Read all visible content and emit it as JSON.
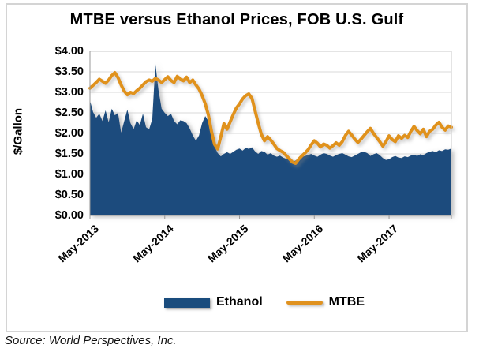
{
  "title": "MTBE versus Ethanol Prices, FOB U.S. Gulf",
  "source": "Source: World Perspectives, Inc.",
  "colors": {
    "ethanol": "#1A4C7D",
    "mtbe": "#E0921F",
    "gridline": "#D9D9D9",
    "axis": "#999999",
    "plot_border": "#C9C9C9",
    "frame_border": "#D4D4D4"
  },
  "chart_data": {
    "type": "area+line",
    "title": "MTBE versus Ethanol Prices, FOB U.S. Gulf",
    "xlabel": "",
    "ylabel": "$/Gallon",
    "ylim": [
      0,
      4
    ],
    "grid": true,
    "legend_position": "bottom",
    "y_ticks": [
      "$4.00",
      "$3.50",
      "$3.00",
      "$2.50",
      "$2.00",
      "$1.50",
      "$1.00",
      "$0.50",
      "$0.00"
    ],
    "x_ticks": {
      "labels": [
        "May-2013",
        "May-2014",
        "May-2015",
        "May-2016",
        "May-2017"
      ],
      "fractions": [
        0,
        0.2069,
        0.4138,
        0.6207,
        0.8276
      ]
    },
    "x_start": "May-2013",
    "x_end": "Mar-2018",
    "sampling": "semi-monthly (estimated from plot)",
    "series": [
      {
        "name": "Ethanol",
        "type": "area",
        "color": "#1A4C7D",
        "values": [
          2.8,
          2.52,
          2.38,
          2.48,
          2.3,
          2.56,
          2.27,
          2.6,
          2.44,
          2.5,
          2.02,
          2.3,
          2.58,
          2.25,
          2.1,
          2.32,
          2.2,
          2.48,
          2.15,
          2.1,
          2.35,
          3.7,
          3.05,
          2.6,
          2.5,
          2.42,
          2.48,
          2.3,
          2.22,
          2.32,
          2.3,
          2.25,
          2.12,
          1.95,
          1.82,
          1.95,
          2.25,
          2.42,
          2.3,
          1.95,
          1.68,
          1.52,
          1.44,
          1.5,
          1.54,
          1.5,
          1.55,
          1.6,
          1.63,
          1.58,
          1.65,
          1.62,
          1.66,
          1.56,
          1.5,
          1.57,
          1.55,
          1.48,
          1.52,
          1.46,
          1.43,
          1.46,
          1.41,
          1.38,
          1.36,
          1.31,
          1.34,
          1.39,
          1.42,
          1.45,
          1.47,
          1.5,
          1.46,
          1.43,
          1.48,
          1.52,
          1.5,
          1.46,
          1.43,
          1.47,
          1.5,
          1.52,
          1.48,
          1.44,
          1.42,
          1.46,
          1.5,
          1.54,
          1.55,
          1.52,
          1.45,
          1.49,
          1.52,
          1.47,
          1.4,
          1.35,
          1.37,
          1.42,
          1.45,
          1.41,
          1.4,
          1.44,
          1.42,
          1.46,
          1.48,
          1.45,
          1.49,
          1.47,
          1.52,
          1.55,
          1.57,
          1.54,
          1.59,
          1.57,
          1.61,
          1.6,
          1.63
        ]
      },
      {
        "name": "MTBE",
        "type": "line",
        "color": "#E0921F",
        "values": [
          3.1,
          3.17,
          3.24,
          3.32,
          3.27,
          3.22,
          3.3,
          3.41,
          3.48,
          3.36,
          3.18,
          3.03,
          2.94,
          3.0,
          2.97,
          3.04,
          3.1,
          3.18,
          3.26,
          3.3,
          3.27,
          3.34,
          3.3,
          3.24,
          3.31,
          3.38,
          3.29,
          3.24,
          3.39,
          3.33,
          3.28,
          3.37,
          3.24,
          3.3,
          3.18,
          3.08,
          2.92,
          2.72,
          2.45,
          2.05,
          1.73,
          1.62,
          1.92,
          2.24,
          2.1,
          2.28,
          2.46,
          2.62,
          2.72,
          2.84,
          2.92,
          2.96,
          2.85,
          2.55,
          2.25,
          1.98,
          1.82,
          1.92,
          1.84,
          1.74,
          1.63,
          1.58,
          1.54,
          1.46,
          1.38,
          1.3,
          1.27,
          1.37,
          1.45,
          1.52,
          1.6,
          1.72,
          1.82,
          1.76,
          1.67,
          1.74,
          1.71,
          1.64,
          1.7,
          1.77,
          1.71,
          1.8,
          1.95,
          2.05,
          1.96,
          1.86,
          1.78,
          1.86,
          1.95,
          2.04,
          2.12,
          2.0,
          1.9,
          1.8,
          1.69,
          1.8,
          1.94,
          1.85,
          1.8,
          1.94,
          1.88,
          1.95,
          1.9,
          2.05,
          2.17,
          2.07,
          1.99,
          2.1,
          1.92,
          2.05,
          2.1,
          2.2,
          2.27,
          2.15,
          2.08,
          2.18,
          2.15
        ]
      }
    ]
  }
}
